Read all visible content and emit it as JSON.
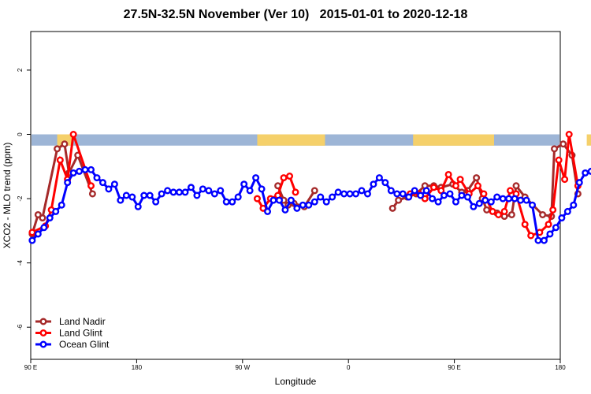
{
  "chart_data": {
    "type": "line",
    "title": "27.5N-32.5N November (Ver 10)   2015-01-01 to 2020-12-18",
    "xlabel": "Longitude",
    "ylabel": "XCO2 - MLO trend (ppm)",
    "x_range_deg": [
      90,
      450
    ],
    "ylim": [
      -7,
      3.2
    ],
    "x_ticks": [
      {
        "x": 90,
        "label": "90 E"
      },
      {
        "x": 180,
        "label": "180"
      },
      {
        "x": 270,
        "label": "90 W"
      },
      {
        "x": 360,
        "label": "0"
      },
      {
        "x": 450,
        "label": "90 E"
      },
      {
        "x": 540,
        "label": "180"
      }
    ],
    "y_ticks": [
      -6,
      -4,
      -2,
      0,
      2
    ],
    "grid": false,
    "legend_position": "bottom-left",
    "colors": {
      "land": "#f5d06a",
      "ocean": "#9db5d6"
    },
    "surface_strip": {
      "y_top": 0,
      "y_bottom": -0.35,
      "land_segments": [
        [
          108,
          118
        ],
        [
          244,
          250
        ],
        [
          245,
          290
        ],
        [
          280,
          290
        ],
        [
          350,
          394
        ],
        [
          350,
          405
        ],
        [
          390,
          395
        ],
        [
          468,
          510
        ],
        [
          485,
          500
        ]
      ]
    },
    "series": [
      {
        "name": "Land Nadir",
        "color": "#a52a2a",
        "segments": [
          [
            [
              91,
              -3.1
            ],
            [
              95,
              -2.5
            ],
            [
              98,
              -2.6
            ],
            [
              108,
              -0.45
            ],
            [
              113,
              -0.3
            ],
            [
              116,
              -1.2
            ],
            [
              122,
              -0.65
            ],
            [
              132,
              -1.85
            ]
          ],
          [
            [
              258,
              -1.6
            ],
            [
              262,
              -2.05
            ],
            [
              265,
              -2.2
            ],
            [
              269,
              -2.15
            ],
            [
              276,
              -2.25
            ],
            [
              283,
              -1.75
            ]
          ],
          [
            [
              336,
              -2.3
            ],
            [
              340,
              -2.05
            ],
            [
              346,
              -1.95
            ],
            [
              352,
              -1.85
            ],
            [
              358,
              -1.6
            ],
            [
              364,
              -1.6
            ],
            [
              369,
              -1.65
            ],
            [
              377,
              -1.55
            ],
            [
              383,
              -1.8
            ],
            [
              387,
              -1.75
            ],
            [
              393,
              -1.35
            ],
            [
              397,
              -2.0
            ],
            [
              400,
              -2.35
            ],
            [
              407,
              -2.45
            ],
            [
              412,
              -2.55
            ],
            [
              417,
              -2.5
            ],
            [
              420,
              -1.6
            ],
            [
              426,
              -1.95
            ],
            [
              438,
              -2.5
            ],
            [
              444,
              -2.55
            ],
            [
              446,
              -0.45
            ],
            [
              452,
              -0.3
            ],
            [
              458,
              -0.65
            ],
            [
              462,
              -1.85
            ]
          ]
        ]
      },
      {
        "name": "Land Glint",
        "color": "#ff0000",
        "segments": [
          [
            [
              91,
              -3.05
            ],
            [
              100,
              -2.85
            ],
            [
              104,
              -2.35
            ],
            [
              110,
              -0.8
            ],
            [
              115,
              -1.4
            ],
            [
              119,
              0.0
            ],
            [
              131,
              -1.6
            ]
          ],
          [
            [
              244,
              -2.0
            ],
            [
              248,
              -2.3
            ],
            [
              253,
              -2.0
            ],
            [
              258,
              -1.9
            ],
            [
              262,
              -1.35
            ],
            [
              266,
              -1.3
            ],
            [
              270,
              -1.8
            ]
          ],
          [
            [
              348,
              -1.85
            ],
            [
              354,
              -1.85
            ],
            [
              358,
              -2.0
            ],
            [
              364,
              -1.65
            ],
            [
              369,
              -1.75
            ],
            [
              374,
              -1.25
            ],
            [
              379,
              -1.6
            ],
            [
              382,
              -1.4
            ],
            [
              388,
              -1.85
            ],
            [
              394,
              -1.6
            ],
            [
              398,
              -1.85
            ],
            [
              404,
              -2.4
            ],
            [
              408,
              -2.5
            ],
            [
              412,
              -2.4
            ],
            [
              416,
              -1.75
            ],
            [
              420,
              -1.85
            ],
            [
              426,
              -2.8
            ],
            [
              430,
              -3.15
            ],
            [
              436,
              -3.05
            ],
            [
              442,
              -2.8
            ],
            [
              445,
              -2.35
            ],
            [
              449,
              -0.8
            ],
            [
              453,
              -1.4
            ],
            [
              456,
              0.0
            ],
            [
              462,
              -1.6
            ]
          ]
        ]
      },
      {
        "name": "Ocean Glint",
        "color": "#0000ff",
        "segments": [
          [
            [
              91,
              -3.3
            ],
            [
              95,
              -3.1
            ],
            [
              99,
              -2.9
            ],
            [
              103,
              -2.6
            ],
            [
              107,
              -2.4
            ],
            [
              111,
              -2.2
            ],
            [
              115,
              -1.5
            ],
            [
              119,
              -1.2
            ],
            [
              123,
              -1.15
            ],
            [
              127,
              -1.1
            ],
            [
              131,
              -1.1
            ],
            [
              135,
              -1.35
            ],
            [
              139,
              -1.5
            ],
            [
              143,
              -1.7
            ],
            [
              147,
              -1.55
            ],
            [
              151,
              -2.05
            ],
            [
              155,
              -1.9
            ],
            [
              159,
              -1.95
            ],
            [
              163,
              -2.25
            ],
            [
              167,
              -1.9
            ],
            [
              171,
              -1.9
            ],
            [
              175,
              -2.1
            ],
            [
              179,
              -1.85
            ],
            [
              183,
              -1.75
            ],
            [
              187,
              -1.8
            ],
            [
              191,
              -1.8
            ],
            [
              195,
              -1.8
            ],
            [
              199,
              -1.65
            ],
            [
              203,
              -1.9
            ],
            [
              207,
              -1.7
            ],
            [
              211,
              -1.75
            ],
            [
              215,
              -1.85
            ],
            [
              219,
              -1.75
            ],
            [
              223,
              -2.1
            ],
            [
              227,
              -2.1
            ],
            [
              231,
              -1.95
            ],
            [
              235,
              -1.55
            ],
            [
              239,
              -1.75
            ],
            [
              243,
              -1.35
            ],
            [
              247,
              -1.7
            ],
            [
              251,
              -2.4
            ],
            [
              255,
              -2.05
            ],
            [
              259,
              -2.05
            ],
            [
              263,
              -2.35
            ],
            [
              267,
              -2.05
            ],
            [
              271,
              -2.3
            ],
            [
              275,
              -2.2
            ],
            [
              279,
              -2.2
            ],
            [
              283,
              -2.1
            ],
            [
              287,
              -1.95
            ],
            [
              291,
              -2.1
            ],
            [
              295,
              -1.95
            ],
            [
              299,
              -1.8
            ],
            [
              303,
              -1.85
            ],
            [
              307,
              -1.85
            ],
            [
              311,
              -1.85
            ],
            [
              315,
              -1.75
            ],
            [
              319,
              -1.85
            ],
            [
              323,
              -1.55
            ],
            [
              327,
              -1.35
            ],
            [
              331,
              -1.5
            ],
            [
              335,
              -1.75
            ],
            [
              339,
              -1.85
            ],
            [
              343,
              -1.85
            ],
            [
              347,
              -1.95
            ],
            [
              351,
              -1.75
            ],
            [
              355,
              -1.9
            ],
            [
              359,
              -1.75
            ],
            [
              363,
              -2.0
            ],
            [
              367,
              -2.1
            ],
            [
              371,
              -1.9
            ],
            [
              375,
              -1.85
            ],
            [
              379,
              -2.1
            ],
            [
              383,
              -1.9
            ],
            [
              387,
              -1.95
            ],
            [
              391,
              -2.25
            ],
            [
              395,
              -2.15
            ],
            [
              399,
              -2.05
            ],
            [
              403,
              -2.1
            ],
            [
              407,
              -1.95
            ],
            [
              411,
              -2.0
            ],
            [
              415,
              -2.0
            ],
            [
              419,
              -2.0
            ],
            [
              423,
              -2.05
            ],
            [
              427,
              -2.05
            ],
            [
              431,
              -2.2
            ],
            [
              435,
              -3.3
            ],
            [
              439,
              -3.3
            ],
            [
              443,
              -3.1
            ],
            [
              447,
              -2.9
            ],
            [
              451,
              -2.6
            ],
            [
              455,
              -2.4
            ],
            [
              459,
              -2.2
            ],
            [
              463,
              -1.5
            ],
            [
              467,
              -1.2
            ],
            [
              471,
              -1.15
            ],
            [
              475,
              -1.1
            ],
            [
              479,
              -1.1
            ],
            [
              483,
              -1.35
            ],
            [
              487,
              -1.5
            ],
            [
              491,
              -1.7
            ],
            [
              495,
              -1.55
            ],
            [
              499,
              -2.05
            ],
            [
              503,
              -1.9
            ],
            [
              507,
              -1.95
            ],
            [
              511,
              -2.25
            ],
            [
              515,
              -1.9
            ]
          ]
        ]
      }
    ]
  }
}
